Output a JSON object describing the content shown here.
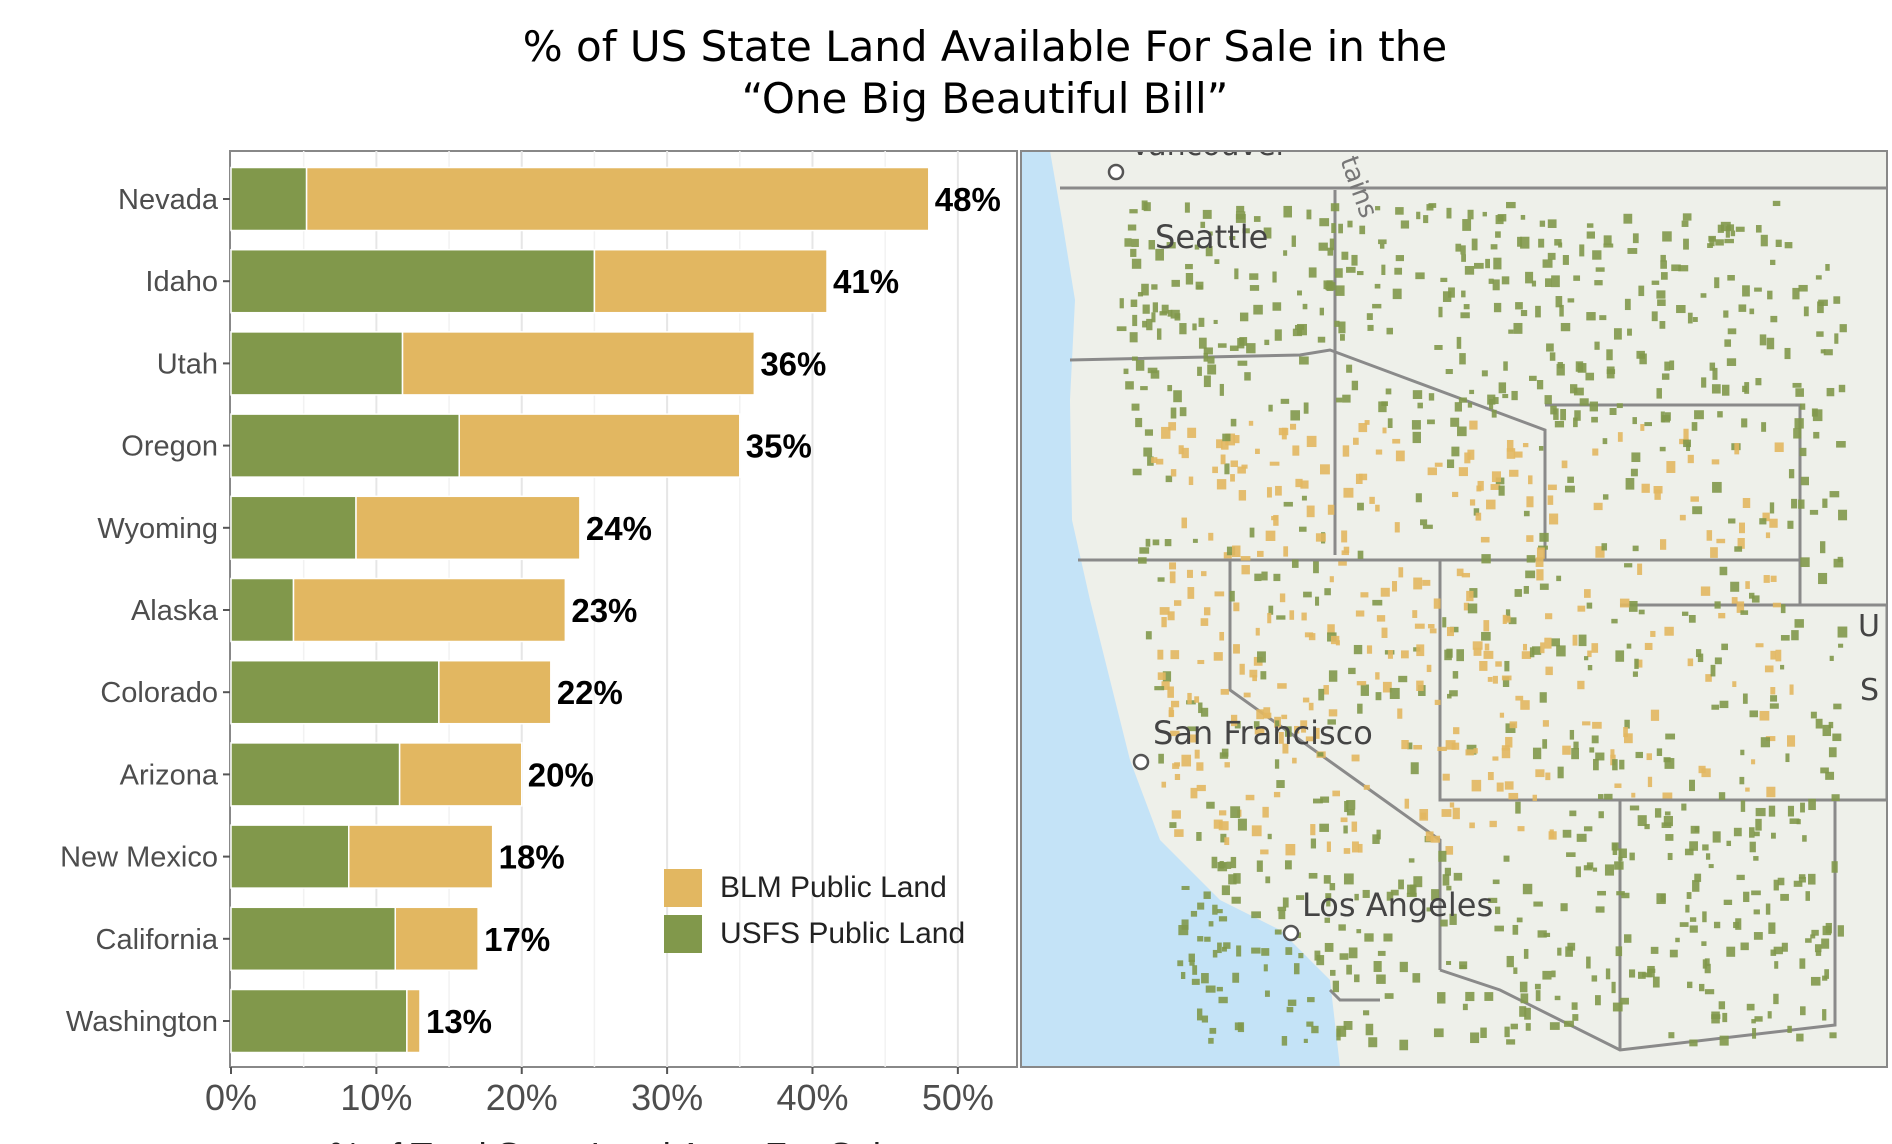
{
  "title_line1": "% of US State Land Available For Sale in the",
  "title_line2": "“One Big Beautiful Bill”",
  "colors": {
    "usfs": "#81984b",
    "blm": "#e2b761",
    "ocean": "#c4e3f7",
    "land": "#eef0ea"
  },
  "chart_data": {
    "type": "bar",
    "orientation": "horizontal",
    "stacked": true,
    "title": "% of US State Land Available For Sale in the “One Big Beautiful Bill”",
    "xlabel": "% of Total State Land Area For Sale",
    "ylabel": "",
    "xlim": [
      0,
      54
    ],
    "xticks": [
      "0%",
      "10%",
      "20%",
      "30%",
      "40%",
      "50%"
    ],
    "grid": true,
    "legend_position": "bottom-right inside",
    "categories": [
      "Nevada",
      "Idaho",
      "Utah",
      "Oregon",
      "Wyoming",
      "Alaska",
      "Colorado",
      "Arizona",
      "New Mexico",
      "California",
      "Washington"
    ],
    "series": [
      {
        "name": "USFS Public Land",
        "values": [
          5.2,
          25.0,
          11.8,
          15.7,
          8.6,
          4.3,
          14.3,
          11.6,
          8.1,
          11.3,
          12.1
        ]
      },
      {
        "name": "BLM Public Land",
        "values": [
          42.8,
          16.0,
          24.2,
          19.3,
          15.4,
          18.7,
          7.7,
          8.4,
          9.9,
          5.7,
          0.9
        ]
      }
    ],
    "totals": [
      48,
      41,
      36,
      35,
      24,
      23,
      22,
      20,
      18,
      17,
      13
    ],
    "data_labels": [
      "48%",
      "41%",
      "36%",
      "35%",
      "24%",
      "23%",
      "22%",
      "20%",
      "18%",
      "17%",
      "13%"
    ]
  },
  "legend": {
    "blm": "BLM Public Land",
    "usfs": "USFS Public Land"
  },
  "map": {
    "labels": [
      "Vancouver",
      "Seattle",
      "San Francisco",
      "Los Angeles",
      "tains",
      "U",
      "S"
    ]
  }
}
